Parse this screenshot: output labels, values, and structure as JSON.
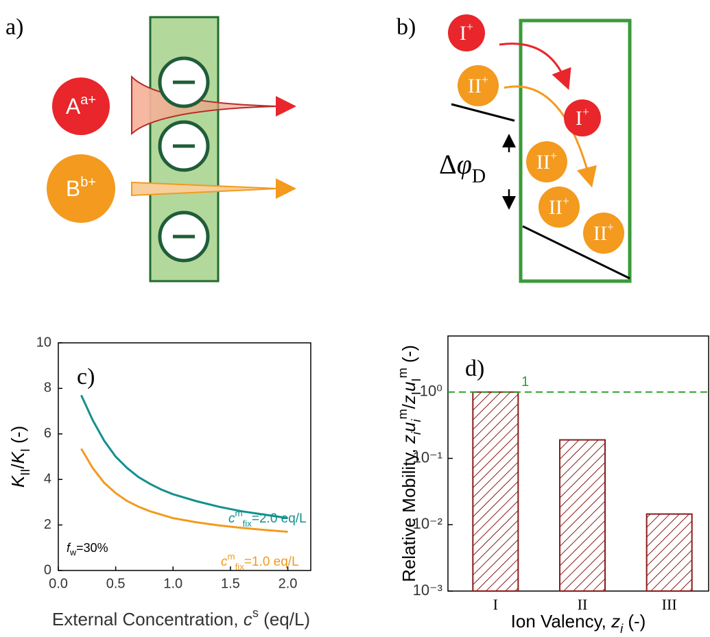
{
  "panel_a": {
    "label": "a)",
    "ions": [
      {
        "symbol": "A",
        "charge": "a+"
      },
      {
        "symbol": "B",
        "charge": "b+"
      }
    ]
  },
  "panel_b": {
    "label": "b)",
    "ion_I": {
      "symbol": "I",
      "charge": "+"
    },
    "ion_II": {
      "symbol": "II",
      "charge": "+"
    },
    "potential": [
      {
        "text": "Δ"
      },
      {
        "text": "φ",
        "style": "italic"
      },
      {
        "text": "D",
        "style": "sub"
      }
    ]
  },
  "chart_data": [
    {
      "type": "line",
      "panel_label": "c)",
      "xlabel": [
        {
          "text": "External Concentration, "
        },
        {
          "text": "c",
          "style": "italic"
        },
        {
          "text": "s",
          "style": "sup"
        },
        {
          "text": " (eq/L)"
        }
      ],
      "ylabel": [
        {
          "text": "K",
          "style": "italic"
        },
        {
          "text": "II",
          "style": "sub"
        },
        {
          "text": "/"
        },
        {
          "text": "K",
          "style": "italic"
        },
        {
          "text": "I",
          "style": "sub"
        },
        {
          "text": " (-)"
        }
      ],
      "x": [
        0.2,
        0.3,
        0.4,
        0.5,
        0.6,
        0.7,
        0.8,
        0.9,
        1.0,
        1.2,
        1.4,
        1.6,
        1.8,
        2.0
      ],
      "series": [
        {
          "name": [
            {
              "text": "c",
              "style": "italic"
            },
            {
              "text": "m",
              "style": "sup"
            },
            {
              "text": "fix",
              "style": "sub"
            },
            {
              "text": "=2.0 eq/L"
            }
          ],
          "color": "#12908e",
          "values": [
            7.7,
            6.6,
            5.7,
            5.0,
            4.5,
            4.1,
            3.8,
            3.55,
            3.35,
            3.05,
            2.8,
            2.6,
            2.45,
            2.3
          ]
        },
        {
          "name": [
            {
              "text": "c",
              "style": "italic"
            },
            {
              "text": "m",
              "style": "sup"
            },
            {
              "text": "fix",
              "style": "sub"
            },
            {
              "text": "=1.0 eq/L"
            }
          ],
          "color": "#f39a1f",
          "values": [
            5.35,
            4.5,
            3.85,
            3.4,
            3.05,
            2.8,
            2.6,
            2.45,
            2.3,
            2.12,
            1.98,
            1.87,
            1.78,
            1.7
          ]
        }
      ],
      "note": [
        {
          "text": "f",
          "style": "italic"
        },
        {
          "text": "w",
          "style": "sub"
        },
        {
          "text": "=30%"
        }
      ],
      "xlim": [
        0,
        2.2
      ],
      "xticks": [
        {
          "value": 0,
          "label": "0.0"
        },
        {
          "value": 0.5,
          "label": "0.5"
        },
        {
          "value": 1,
          "label": "1.0"
        },
        {
          "value": 1.5,
          "label": "1.5"
        },
        {
          "value": 2,
          "label": "2.0"
        }
      ],
      "ylim": [
        0,
        10
      ],
      "yticks": [
        0,
        2,
        4,
        6,
        8,
        10
      ]
    },
    {
      "type": "bar",
      "panel_label": "d)",
      "xlabel": [
        {
          "text": "Ion Valency, "
        },
        {
          "text": "z",
          "style": "italic"
        },
        {
          "text": "i",
          "style": "italic-sub"
        },
        {
          "text": " (-)"
        }
      ],
      "ylabel": [
        {
          "text": "Relative Mobility, "
        },
        {
          "text": "z",
          "style": "italic"
        },
        {
          "text": "i",
          "style": "italic-sub"
        },
        {
          "text": "u",
          "style": "italic"
        },
        {
          "text": "i",
          "style": "italic-sub"
        },
        {
          "text": "m",
          "style": "sup"
        },
        {
          "text": "/"
        },
        {
          "text": "z",
          "style": "italic"
        },
        {
          "text": "I",
          "style": "sub"
        },
        {
          "text": "u",
          "style": "italic"
        },
        {
          "text": "I",
          "style": "sub"
        },
        {
          "text": "m",
          "style": "sup"
        },
        {
          "text": " (-)"
        }
      ],
      "categories": [
        "I",
        "II",
        "III"
      ],
      "values": [
        1,
        0.19,
        0.0145
      ],
      "color": "#8b1a1a",
      "reference_line": {
        "value": 1,
        "label": "1",
        "color": "#2ca02c"
      },
      "log_scale": true,
      "ylim": [
        0.001,
        7
      ],
      "yticks": [
        {
          "value": 0.001,
          "label": "10⁻³"
        },
        {
          "value": 0.01,
          "label": "10⁻²"
        },
        {
          "value": 0.1,
          "label": "10⁻¹"
        },
        {
          "value": 1,
          "label": "10⁰"
        }
      ]
    }
  ]
}
